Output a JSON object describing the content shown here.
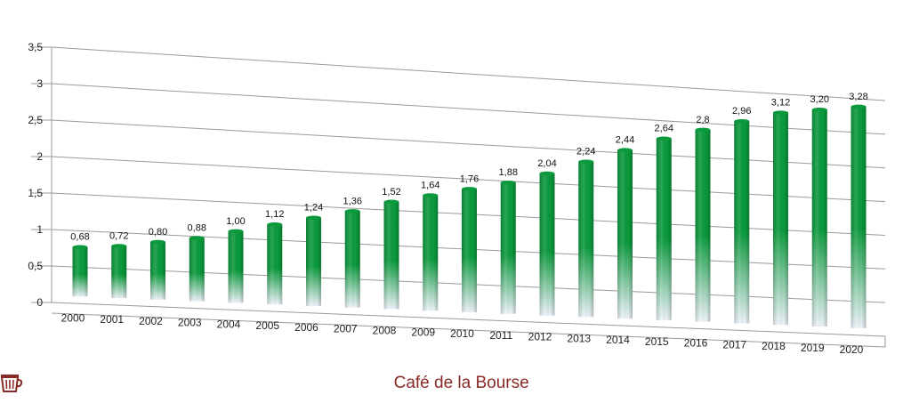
{
  "chart_data": {
    "type": "bar",
    "categories": [
      "2000",
      "2001",
      "2002",
      "2003",
      "2004",
      "2005",
      "2006",
      "2007",
      "2008",
      "2009",
      "2010",
      "2011",
      "2012",
      "2013",
      "2014",
      "2015",
      "2016",
      "2017",
      "2018",
      "2019",
      "2020"
    ],
    "values": [
      0.68,
      0.72,
      0.8,
      0.88,
      1.0,
      1.12,
      1.24,
      1.36,
      1.52,
      1.64,
      1.76,
      1.88,
      2.04,
      2.24,
      2.44,
      2.64,
      2.8,
      2.96,
      3.12,
      3.2,
      3.28
    ],
    "data_labels": [
      "0,68",
      "0,72",
      "0,80",
      "0,88",
      "1,00",
      "1,12",
      "1,24",
      "1,36",
      "1,52",
      "1,64",
      "1,76",
      "1,88",
      "2,04",
      "2,24",
      "2,44",
      "2,64",
      "2,8",
      "2,96",
      "3,12",
      "3,20",
      "3,28"
    ],
    "y_ticks": [
      0,
      0.5,
      1,
      1.5,
      2,
      2.5,
      3,
      3.5
    ],
    "y_tick_labels": [
      "0",
      "0,5",
      "1",
      "1,5",
      "2",
      "2,5",
      "3",
      "3,5"
    ],
    "ylim": [
      0,
      3.5
    ],
    "grid": true,
    "title": "",
    "xlabel": "",
    "ylabel": "",
    "colors": {
      "bar_top": "#0a9a3c",
      "bar_bottom": "#eef3fb",
      "grid": "#9a9a9a"
    }
  },
  "brand": {
    "name": "Café de la Bourse",
    "logo_icon": "coffee-cup-icon",
    "color": "#8a2a26"
  }
}
